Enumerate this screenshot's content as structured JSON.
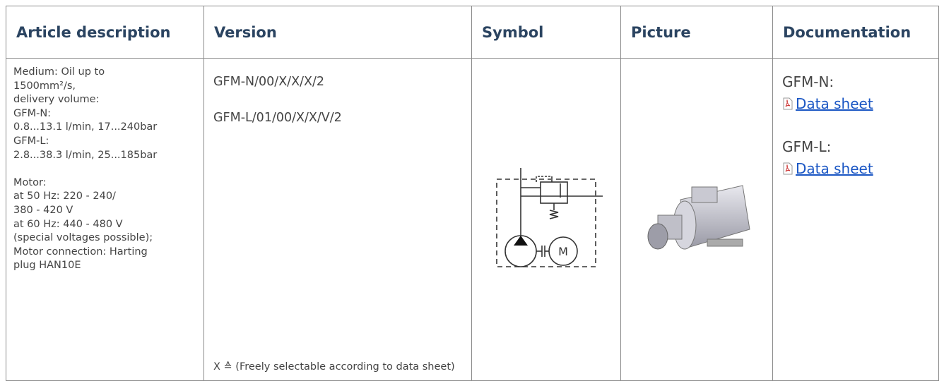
{
  "table": {
    "headers": [
      "Article description",
      "Version",
      "Symbol",
      "Picture",
      "Documentation"
    ],
    "rows": [
      {
        "description": [
          [
            "Medium: Oil up to",
            "1500mm²/s,",
            "delivery volume:",
            "GFM-N:",
            "0.8...13.1 l/min, 17...240bar",
            "GFM-L:",
            "2.8...38.3 l/min, 25...185bar"
          ],
          [
            "Motor:",
            "at 50 Hz: 220 - 240/",
            "380 - 420 V",
            "at 60 Hz: 440 - 480 V",
            "(special voltages possible);",
            "Motor connection: Harting",
            "plug HAN10E"
          ]
        ],
        "versions": [
          "GFM-N/00/X/X/X/2",
          "GFM-L/01/00/X/X/V/2"
        ],
        "note": "X ≙ (Freely selectable according to data sheet)",
        "documentation": [
          {
            "label": "GFM-N:",
            "link": "Data sheet"
          },
          {
            "label": "GFM-L:",
            "link": "Data sheet"
          }
        ]
      }
    ]
  }
}
